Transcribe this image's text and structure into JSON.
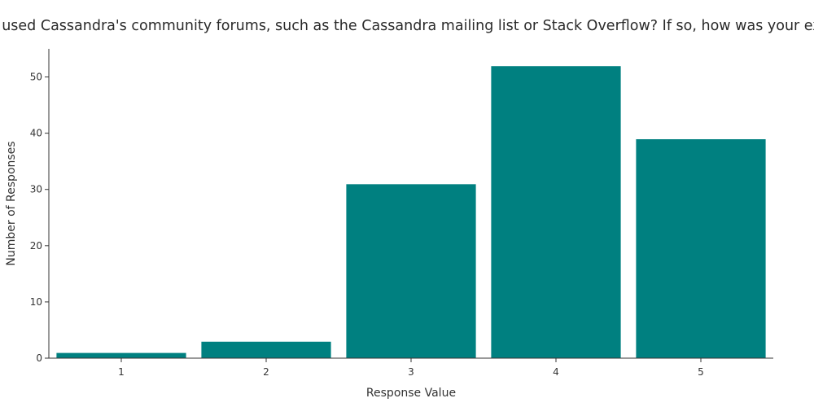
{
  "chart_data": {
    "type": "bar",
    "title": "Have you used Cassandra's community forums, such as the Cassandra mailing list or Stack Overflow? If so, how was your experience?",
    "xlabel": "Response Value",
    "ylabel": "Number of Responses",
    "categories": [
      "1",
      "2",
      "3",
      "4",
      "5"
    ],
    "values": [
      1,
      3,
      31,
      52,
      39
    ],
    "ylim": [
      0,
      55
    ],
    "yticks": [
      0,
      10,
      20,
      30,
      40,
      50
    ],
    "grid": false,
    "bar_color": "#008080",
    "bar_edge_color": "#ffffff"
  }
}
